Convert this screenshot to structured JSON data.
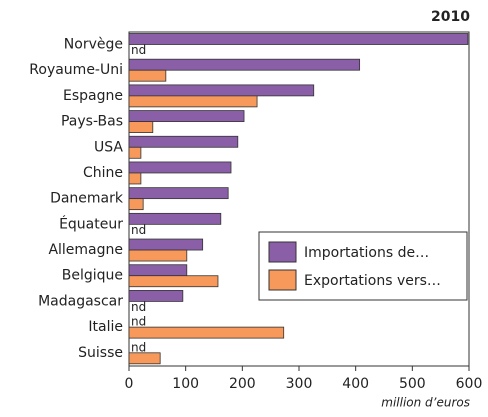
{
  "chart_data": {
    "type": "barh",
    "title": "2010",
    "x_label": "million d’euros",
    "categories": [
      "Norvège",
      "Royaume-Uni",
      "Espagne",
      "Pays-Bas",
      "USA",
      "Chine",
      "Danemark",
      "Équateur",
      "Allemagne",
      "Belgique",
      "Madagascar",
      "Italie",
      "Suisse"
    ],
    "series": [
      {
        "name": "Importations de…",
        "color": "#8b5fa8",
        "values": [
          598,
          407,
          326,
          203,
          192,
          180,
          175,
          162,
          130,
          102,
          95,
          null,
          null
        ],
        "value_labels": [
          null,
          null,
          null,
          null,
          null,
          null,
          null,
          null,
          null,
          null,
          null,
          "nd",
          "nd"
        ]
      },
      {
        "name": "Exportations vers…",
        "color": "#f7995a",
        "values": [
          null,
          65,
          226,
          42,
          21,
          21,
          25,
          null,
          102,
          157,
          null,
          273,
          55
        ],
        "value_labels": [
          "nd",
          null,
          null,
          null,
          null,
          null,
          null,
          "nd",
          null,
          null,
          "nd",
          null,
          null
        ]
      }
    ],
    "xlim": [
      0,
      600
    ],
    "xticks": [
      0,
      100,
      200,
      300,
      400,
      500,
      600
    ],
    "legend": "lower right"
  }
}
